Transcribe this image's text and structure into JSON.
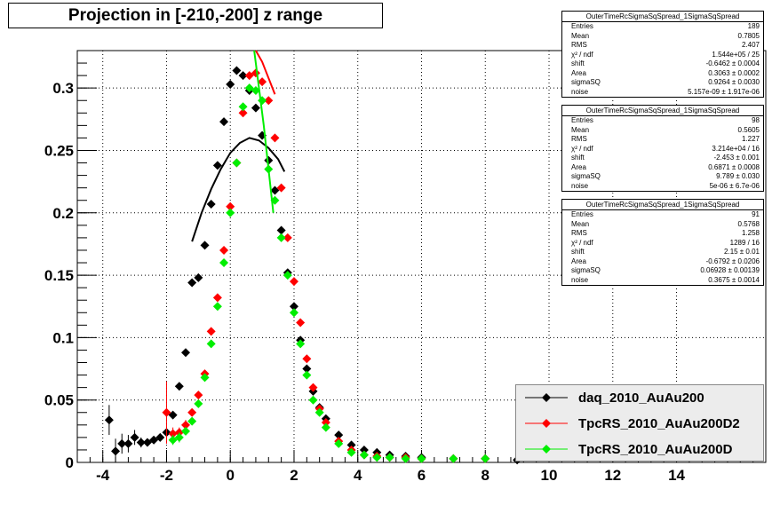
{
  "title": "Projection in [-210,-200] z range",
  "chart_data": {
    "type": "scatter",
    "xlim": [
      -4.8,
      16.8
    ],
    "ylim": [
      0,
      0.33
    ],
    "x_ticks": [
      "-4",
      "-2",
      "0",
      "2",
      "4",
      "6",
      "8",
      "10",
      "12",
      "14"
    ],
    "x_tick_values": [
      -4,
      -2,
      0,
      2,
      4,
      6,
      8,
      10,
      12,
      14
    ],
    "y_ticks": [
      "0",
      "0.05",
      "0.1",
      "0.15",
      "0.2",
      "0.25",
      "0.3"
    ],
    "y_tick_values": [
      0,
      0.05,
      0.1,
      0.15,
      0.2,
      0.25,
      0.3
    ],
    "grid": true,
    "legend_position": "bottom-right",
    "series": [
      {
        "name": "daq_2010_AuAu200",
        "color": "#000000",
        "x": [
          -3.8,
          -3.6,
          -3.4,
          -3.2,
          -3.0,
          -2.8,
          -2.6,
          -2.4,
          -2.2,
          -2.0,
          -1.8,
          -1.6,
          -1.4,
          -1.2,
          -1.0,
          -0.8,
          -0.6,
          -0.4,
          -0.2,
          0.0,
          0.2,
          0.4,
          0.6,
          0.8,
          1.0,
          1.2,
          1.4,
          1.6,
          1.8,
          2.0,
          2.2,
          2.4,
          2.6,
          2.8,
          3.0,
          3.4,
          3.8,
          4.2,
          4.6,
          5.0,
          5.5,
          6.0,
          7.0,
          8.0,
          9.0
        ],
        "y": [
          0.034,
          0.009,
          0.015,
          0.015,
          0.02,
          0.016,
          0.016,
          0.018,
          0.02,
          0.024,
          0.038,
          0.061,
          0.088,
          0.144,
          0.148,
          0.174,
          0.207,
          0.238,
          0.273,
          0.303,
          0.314,
          0.31,
          0.298,
          0.284,
          0.262,
          0.242,
          0.218,
          0.186,
          0.152,
          0.125,
          0.098,
          0.075,
          0.057,
          0.044,
          0.035,
          0.022,
          0.014,
          0.01,
          0.008,
          0.006,
          0.005,
          0.004,
          0.003,
          0.003,
          0.002
        ],
        "yerr": [
          0.012,
          0.01,
          0.008,
          0.007,
          0.006,
          0.004,
          0.003,
          0.003,
          0.003,
          0.003,
          0.003,
          0.003,
          0.003,
          0.003,
          0.003,
          0.003,
          0.003,
          0.003,
          0.003,
          0.003,
          0.003,
          0.003,
          0.003,
          0.003,
          0.003,
          0.003,
          0.003,
          0.003,
          0.003,
          0.003,
          0.002,
          0.002,
          0.002,
          0.002,
          0.002,
          0.001,
          0.001,
          0.001,
          0.001,
          0.001,
          0.001,
          0.001,
          0.001,
          0.001,
          0.001
        ],
        "fit": {
          "x": [
            -1.2,
            -0.9,
            -0.6,
            -0.3,
            0.0,
            0.3,
            0.6,
            0.9,
            1.2,
            1.5,
            1.7
          ],
          "y": [
            0.177,
            0.2,
            0.219,
            0.235,
            0.248,
            0.256,
            0.26,
            0.258,
            0.252,
            0.243,
            0.233
          ]
        }
      },
      {
        "name": "TpcRS_2010_AuAu200D2",
        "color": "#ff0000",
        "x": [
          -2.0,
          -1.8,
          -1.6,
          -1.4,
          -1.2,
          -1.0,
          -0.8,
          -0.6,
          -0.4,
          -0.2,
          0.0,
          0.2,
          0.4,
          0.6,
          0.8,
          1.0,
          1.2,
          1.4,
          1.6,
          1.8,
          2.0,
          2.2,
          2.4,
          2.6,
          2.8,
          3.0,
          3.4,
          3.8,
          4.2,
          4.6,
          5.0,
          5.5,
          6.0,
          7.0,
          8.0
        ],
        "y": [
          0.04,
          0.023,
          0.024,
          0.03,
          0.04,
          0.054,
          0.071,
          0.105,
          0.132,
          0.17,
          0.205,
          0.24,
          0.28,
          0.31,
          0.312,
          0.305,
          0.29,
          0.26,
          0.22,
          0.18,
          0.145,
          0.112,
          0.083,
          0.06,
          0.043,
          0.032,
          0.017,
          0.01,
          0.006,
          0.005,
          0.004,
          0.004,
          0.003,
          0.003,
          0.003
        ],
        "yerr": [
          0.025,
          0.005,
          0.004,
          0.004,
          0.003,
          0.003,
          0.003,
          0.003,
          0.003,
          0.003,
          0.003,
          0.003,
          0.003,
          0.003,
          0.003,
          0.003,
          0.003,
          0.003,
          0.003,
          0.003,
          0.003,
          0.003,
          0.003,
          0.003,
          0.002,
          0.002,
          0.002,
          0.001,
          0.001,
          0.001,
          0.001,
          0.001,
          0.001,
          0.001,
          0.001
        ],
        "fit": {
          "x": [
            0.8,
            1.0,
            1.2,
            1.4
          ],
          "y": [
            0.33,
            0.321,
            0.308,
            0.295
          ]
        }
      },
      {
        "name": "TpcRS_2010_AuAu200D",
        "color": "#00ee00",
        "x": [
          -1.8,
          -1.6,
          -1.4,
          -1.2,
          -1.0,
          -0.8,
          -0.6,
          -0.4,
          -0.2,
          0.0,
          0.2,
          0.4,
          0.6,
          0.8,
          1.0,
          1.2,
          1.4,
          1.6,
          1.8,
          2.0,
          2.2,
          2.4,
          2.6,
          2.8,
          3.0,
          3.4,
          3.8,
          4.2,
          4.6,
          5.0,
          5.5,
          6.0,
          7.0,
          8.0
        ],
        "y": [
          0.018,
          0.02,
          0.025,
          0.033,
          0.047,
          0.068,
          0.095,
          0.125,
          0.16,
          0.2,
          0.24,
          0.285,
          0.3,
          0.298,
          0.29,
          0.235,
          0.21,
          0.18,
          0.15,
          0.12,
          0.095,
          0.07,
          0.05,
          0.04,
          0.028,
          0.015,
          0.008,
          0.006,
          0.004,
          0.004,
          0.003,
          0.003,
          0.003,
          0.003
        ],
        "yerr": [
          0.004,
          0.004,
          0.003,
          0.003,
          0.003,
          0.003,
          0.003,
          0.003,
          0.003,
          0.003,
          0.003,
          0.003,
          0.003,
          0.003,
          0.003,
          0.003,
          0.003,
          0.003,
          0.003,
          0.003,
          0.003,
          0.002,
          0.002,
          0.002,
          0.002,
          0.001,
          0.001,
          0.001,
          0.001,
          0.001,
          0.001,
          0.001,
          0.001,
          0.001
        ],
        "fit": {
          "x": [
            0.75,
            0.9,
            1.05,
            1.2,
            1.35
          ],
          "y": [
            0.33,
            0.3,
            0.27,
            0.235,
            0.2
          ]
        }
      }
    ]
  },
  "stats_boxes": [
    {
      "title": "OuterTimeRcSigmaSqSpread_1SigmaSqSpread",
      "rows": [
        {
          "key": "Entries",
          "value": "189"
        },
        {
          "key": "Mean",
          "value": "0.7805"
        },
        {
          "key": "RMS",
          "value": "2.407"
        },
        {
          "key": "χ² / ndf",
          "value": "1.544e+05 / 25"
        },
        {
          "key": "shift",
          "value": "-0.6462 ± 0.0004"
        },
        {
          "key": "Area",
          "value": "0.3063 ± 0.0002"
        },
        {
          "key": "sigmaSQ",
          "value": "0.9264 ± 0.0030"
        },
        {
          "key": "noise",
          "value": "5.157e-09 ± 1.917e-06"
        }
      ]
    },
    {
      "title": "OuterTimeRcSigmaSqSpread_1SigmaSqSpread",
      "rows": [
        {
          "key": "Entries",
          "value": "98"
        },
        {
          "key": "Mean",
          "value": "0.5605"
        },
        {
          "key": "RMS",
          "value": "1.227"
        },
        {
          "key": "χ² / ndf",
          "value": "3.214e+04 / 16"
        },
        {
          "key": "shift",
          "value": "-2.453 ± 0.001"
        },
        {
          "key": "Area",
          "value": "0.6871 ± 0.0008"
        },
        {
          "key": "sigmaSQ",
          "value": "9.789 ± 0.030"
        },
        {
          "key": "noise",
          "value": "5e-06 ± 6.7e-06"
        }
      ]
    },
    {
      "title": "OuterTimeRcSigmaSqSpread_1SigmaSqSpread",
      "rows": [
        {
          "key": "Entries",
          "value": "91"
        },
        {
          "key": "Mean",
          "value": "0.5768"
        },
        {
          "key": "RMS",
          "value": "1.258"
        },
        {
          "key": "χ² / ndf",
          "value": "1289 / 16"
        },
        {
          "key": "shift",
          "value": "2.15 ± 0.01"
        },
        {
          "key": "Area",
          "value": "-0.6792 ± 0.0206"
        },
        {
          "key": "sigmaSQ",
          "value": "0.06928 ± 0.00139"
        },
        {
          "key": "noise",
          "value": "0.3675 ± 0.0014"
        }
      ]
    }
  ],
  "legend": {
    "items": [
      {
        "label": "daq_2010_AuAu200",
        "color": "#000000"
      },
      {
        "label": "TpcRS_2010_AuAu200D2",
        "color": "#ff0000"
      },
      {
        "label": "TpcRS_2010_AuAu200D",
        "color": "#00ee00"
      }
    ]
  }
}
